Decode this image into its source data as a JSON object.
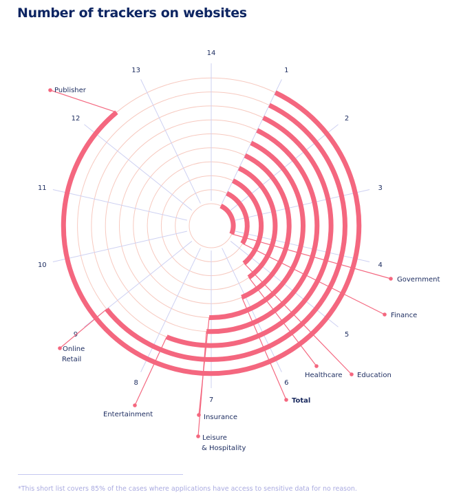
{
  "chart_data": {
    "type": "radial-bar",
    "title": "Number of trackers on websites",
    "axis_ticks": [
      "1",
      "2",
      "3",
      "4",
      "5",
      "6",
      "7",
      "8",
      "9",
      "10",
      "11",
      "12",
      "13",
      "14"
    ],
    "axis_range": [
      0,
      14
    ],
    "arc_start": 1,
    "series": [
      {
        "name": "Government",
        "value": 4.35
      },
      {
        "name": "Finance",
        "value": 4.65
      },
      {
        "name": "Education",
        "value": 5.4
      },
      {
        "name": "Healthcare",
        "value": 5.6
      },
      {
        "name": "Total",
        "value": 6.1,
        "bold": true
      },
      {
        "name": "Insurance",
        "value": 7.05
      },
      {
        "name": "Leisure\n& Hospitality",
        "value": 7.1
      },
      {
        "name": "Entertainment",
        "value": 7.85
      },
      {
        "name": "Online\nRetail",
        "value": 9.0
      },
      {
        "name": "Publisher",
        "value": 12.45
      }
    ],
    "colors": {
      "arc": "#f4677f",
      "grid_circle": "#f7c9bf",
      "grid_spoke": "#cdd0f2",
      "text": "#1a2a5e",
      "title": "#0d2562"
    }
  },
  "footnote": "*This short list covers 85% of the cases where applications have access to sensitive data for no reason."
}
